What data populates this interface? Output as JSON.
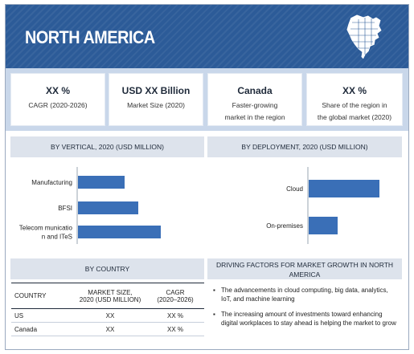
{
  "header": {
    "title": "NORTH AMERICA",
    "map_icon": "north-america-map-icon"
  },
  "kpis": [
    {
      "big": "XX %",
      "line1": "CAGR (2020-2026)",
      "line2": ""
    },
    {
      "big": "USD XX Billion",
      "line1": "Market Size (2020)",
      "line2": ""
    },
    {
      "big": "Canada",
      "line1": "Faster-growing",
      "line2": "market in the region"
    },
    {
      "big": "XX %",
      "line1": "Share of the region in",
      "line2": "the global market (2020)"
    }
  ],
  "sections": {
    "vertical": "BY VERTICAL, 2020 (USD MILLION)",
    "deployment": "BY DEPLOYMENT,  2020 (USD MILLION)",
    "country": "BY COUNTRY",
    "drivers": "DRIVING FACTORS FOR MARKET GROWTH IN NORTH AMERICA"
  },
  "colors": {
    "header": "#2c5b98",
    "bar": "#3a6fb7",
    "band": "#c9d7ea"
  },
  "chart_data": [
    {
      "type": "bar",
      "orientation": "horizontal",
      "categories": [
        "Manufacturing",
        "BFSI",
        "Telecommunication and ITeS"
      ],
      "category_lines": [
        [
          "Manufacturing"
        ],
        [
          "BFSI"
        ],
        [
          "Telecom municatio",
          "n and ITeS"
        ]
      ],
      "values": [
        58,
        75,
        103
      ]
    },
    {
      "type": "bar",
      "orientation": "horizontal",
      "categories": [
        "Cloud",
        "On-premises"
      ],
      "category_lines": [
        [
          "Cloud"
        ],
        [
          "On-premises"
        ]
      ],
      "values": [
        88,
        36
      ]
    }
  ],
  "table": {
    "headers": [
      "COUNTRY",
      "MARKET SIZE, 2020 (USD MILLION)",
      "CAGR (2020–2026)"
    ],
    "header_lines": [
      [
        "COUNTRY"
      ],
      [
        "MARKET SIZE,",
        "2020 (USD MILLION)"
      ],
      [
        "CAGR",
        "(2020–2026)"
      ]
    ],
    "rows": [
      [
        "US",
        "XX",
        "XX %"
      ],
      [
        "Canada",
        "XX",
        "XX %"
      ]
    ]
  },
  "drivers": [
    "The advancements in cloud computing, big data, analytics, IoT, and machine learning",
    "The increasing amount of investments toward enhancing digital workplaces to stay ahead is helping the market to grow"
  ]
}
